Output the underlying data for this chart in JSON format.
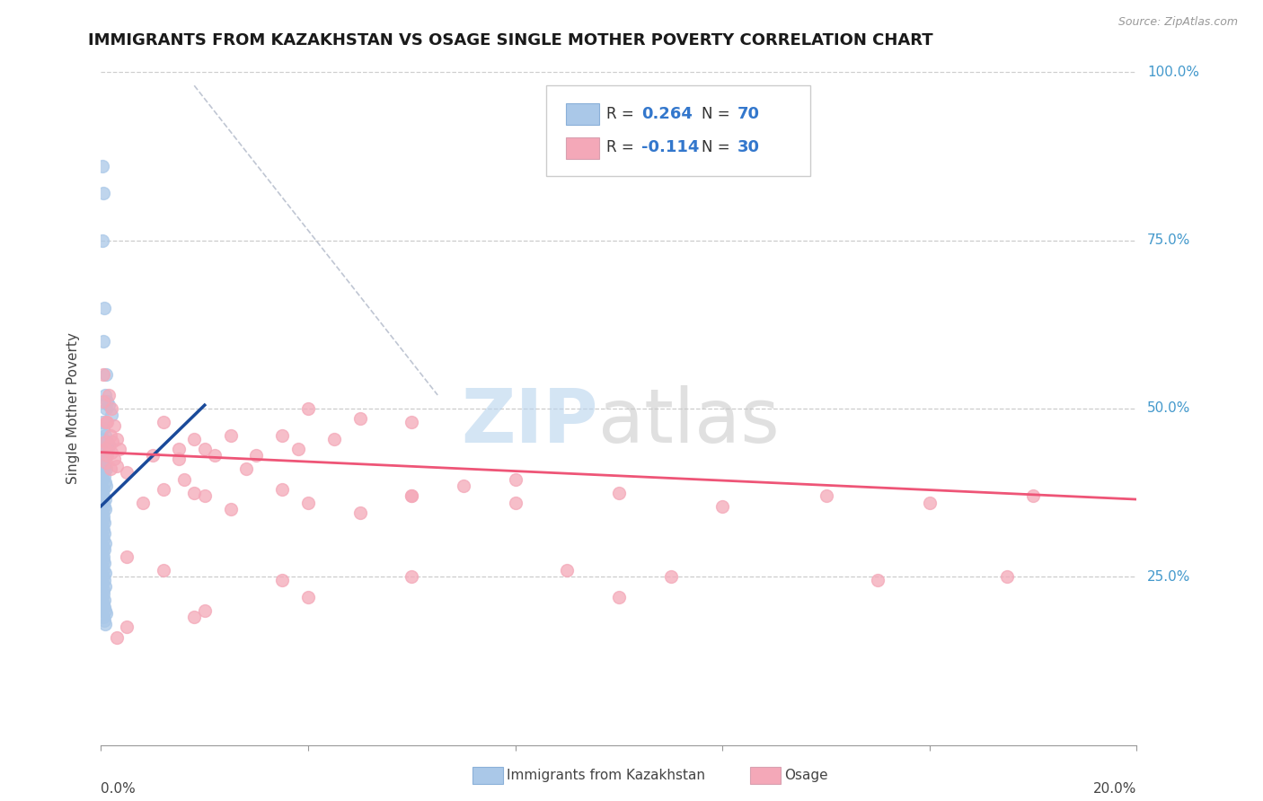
{
  "title": "IMMIGRANTS FROM KAZAKHSTAN VS OSAGE SINGLE MOTHER POVERTY CORRELATION CHART",
  "source": "Source: ZipAtlas.com",
  "ylabel": "Single Mother Poverty",
  "x_min": 0.0,
  "x_max": 0.2,
  "y_min": 0.0,
  "y_max": 1.0,
  "blue_color": "#aac8e8",
  "pink_color": "#f4a8b8",
  "blue_line_color": "#1a4a9a",
  "pink_line_color": "#ee5577",
  "dash_line_color": "#b0b8c8",
  "blue_scatter": [
    [
      0.0002,
      0.86
    ],
    [
      0.0005,
      0.82
    ],
    [
      0.0003,
      0.75
    ],
    [
      0.0006,
      0.65
    ],
    [
      0.0004,
      0.6
    ],
    [
      0.001,
      0.55
    ],
    [
      0.0008,
      0.52
    ],
    [
      0.0012,
      0.51
    ],
    [
      0.0015,
      0.505
    ],
    [
      0.001,
      0.5
    ],
    [
      0.0003,
      0.48
    ],
    [
      0.0005,
      0.47
    ],
    [
      0.002,
      0.49
    ],
    [
      0.0008,
      0.46
    ],
    [
      0.0004,
      0.455
    ],
    [
      0.0012,
      0.45
    ],
    [
      0.0015,
      0.445
    ],
    [
      0.0006,
      0.44
    ],
    [
      0.0008,
      0.435
    ],
    [
      0.001,
      0.43
    ],
    [
      0.0003,
      0.425
    ],
    [
      0.0005,
      0.42
    ],
    [
      0.0007,
      0.415
    ],
    [
      0.0009,
      0.41
    ],
    [
      0.0004,
      0.405
    ],
    [
      0.0006,
      0.4
    ],
    [
      0.0002,
      0.395
    ],
    [
      0.0008,
      0.39
    ],
    [
      0.001,
      0.385
    ],
    [
      0.0004,
      0.38
    ],
    [
      0.0003,
      0.375
    ],
    [
      0.0005,
      0.37
    ],
    [
      0.0007,
      0.365
    ],
    [
      0.0004,
      0.36
    ],
    [
      0.0006,
      0.355
    ],
    [
      0.0008,
      0.35
    ],
    [
      0.0003,
      0.345
    ],
    [
      0.0005,
      0.34
    ],
    [
      0.0004,
      0.335
    ],
    [
      0.0006,
      0.33
    ],
    [
      0.0002,
      0.325
    ],
    [
      0.0004,
      0.32
    ],
    [
      0.0006,
      0.315
    ],
    [
      0.0003,
      0.31
    ],
    [
      0.0005,
      0.305
    ],
    [
      0.0007,
      0.3
    ],
    [
      0.0004,
      0.295
    ],
    [
      0.0006,
      0.29
    ],
    [
      0.0003,
      0.285
    ],
    [
      0.0005,
      0.28
    ],
    [
      0.0004,
      0.275
    ],
    [
      0.0006,
      0.27
    ],
    [
      0.0003,
      0.265
    ],
    [
      0.0005,
      0.26
    ],
    [
      0.0007,
      0.255
    ],
    [
      0.0004,
      0.25
    ],
    [
      0.0006,
      0.245
    ],
    [
      0.0003,
      0.24
    ],
    [
      0.0008,
      0.235
    ],
    [
      0.0004,
      0.23
    ],
    [
      0.0005,
      0.225
    ],
    [
      0.0003,
      0.22
    ],
    [
      0.0006,
      0.215
    ],
    [
      0.0004,
      0.21
    ],
    [
      0.0006,
      0.205
    ],
    [
      0.0008,
      0.2
    ],
    [
      0.001,
      0.195
    ],
    [
      0.0004,
      0.19
    ],
    [
      0.0006,
      0.185
    ],
    [
      0.0008,
      0.18
    ]
  ],
  "pink_scatter": [
    [
      0.0005,
      0.55
    ],
    [
      0.0015,
      0.52
    ],
    [
      0.002,
      0.5
    ],
    [
      0.001,
      0.48
    ],
    [
      0.0025,
      0.475
    ],
    [
      0.0018,
      0.46
    ],
    [
      0.003,
      0.455
    ],
    [
      0.0022,
      0.45
    ],
    [
      0.0015,
      0.445
    ],
    [
      0.0008,
      0.44
    ],
    [
      0.002,
      0.435
    ],
    [
      0.0012,
      0.43
    ],
    [
      0.0025,
      0.425
    ],
    [
      0.001,
      0.42
    ],
    [
      0.003,
      0.415
    ],
    [
      0.0018,
      0.41
    ],
    [
      0.0008,
      0.45
    ],
    [
      0.0035,
      0.44
    ],
    [
      0.0012,
      0.48
    ],
    [
      0.0004,
      0.51
    ],
    [
      0.05,
      0.485
    ],
    [
      0.025,
      0.46
    ],
    [
      0.018,
      0.455
    ],
    [
      0.03,
      0.43
    ],
    [
      0.012,
      0.48
    ],
    [
      0.04,
      0.5
    ],
    [
      0.06,
      0.48
    ],
    [
      0.022,
      0.43
    ],
    [
      0.035,
      0.46
    ],
    [
      0.015,
      0.44
    ],
    [
      0.045,
      0.455
    ],
    [
      0.01,
      0.43
    ],
    [
      0.028,
      0.41
    ],
    [
      0.02,
      0.44
    ],
    [
      0.016,
      0.395
    ],
    [
      0.038,
      0.44
    ],
    [
      0.06,
      0.37
    ],
    [
      0.07,
      0.385
    ],
    [
      0.08,
      0.395
    ],
    [
      0.015,
      0.425
    ],
    [
      0.005,
      0.405
    ],
    [
      0.02,
      0.37
    ],
    [
      0.012,
      0.38
    ],
    [
      0.008,
      0.36
    ],
    [
      0.06,
      0.37
    ],
    [
      0.035,
      0.38
    ],
    [
      0.05,
      0.345
    ],
    [
      0.025,
      0.35
    ],
    [
      0.04,
      0.36
    ],
    [
      0.018,
      0.375
    ],
    [
      0.1,
      0.375
    ],
    [
      0.14,
      0.37
    ],
    [
      0.16,
      0.36
    ],
    [
      0.18,
      0.37
    ],
    [
      0.12,
      0.355
    ],
    [
      0.08,
      0.36
    ],
    [
      0.005,
      0.28
    ],
    [
      0.012,
      0.26
    ],
    [
      0.035,
      0.245
    ],
    [
      0.06,
      0.25
    ],
    [
      0.09,
      0.26
    ],
    [
      0.15,
      0.245
    ],
    [
      0.175,
      0.25
    ],
    [
      0.02,
      0.2
    ],
    [
      0.018,
      0.19
    ],
    [
      0.1,
      0.22
    ],
    [
      0.11,
      0.25
    ],
    [
      0.04,
      0.22
    ],
    [
      0.005,
      0.175
    ],
    [
      0.003,
      0.16
    ]
  ],
  "blue_line_x": [
    0.0,
    0.02
  ],
  "blue_line_y": [
    0.355,
    0.505
  ],
  "pink_line_x": [
    0.0,
    0.2
  ],
  "pink_line_y": [
    0.435,
    0.365
  ],
  "dash_line_x": [
    0.018,
    0.065
  ],
  "dash_line_y": [
    0.98,
    0.52
  ]
}
